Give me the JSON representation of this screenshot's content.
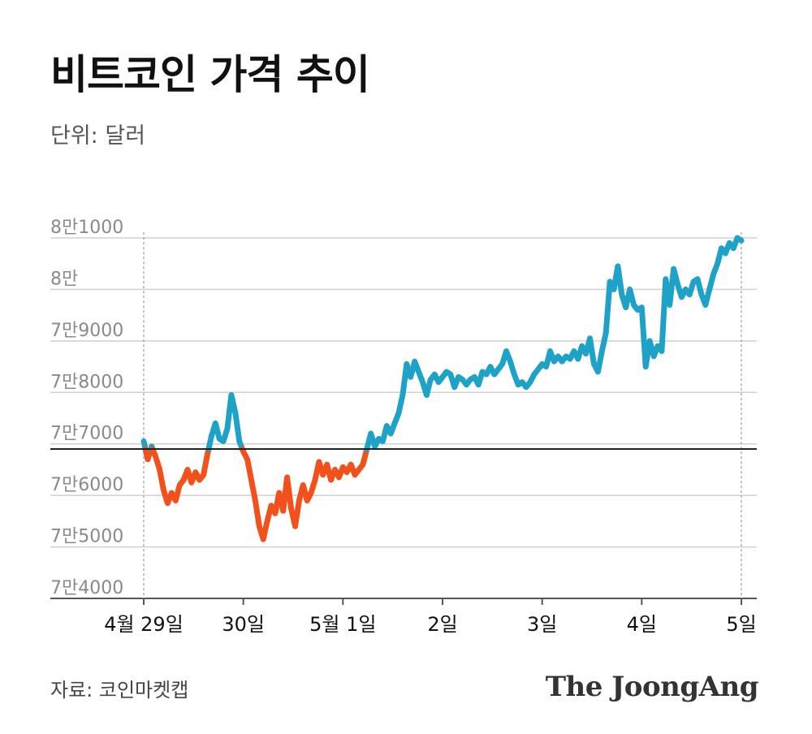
{
  "header": {
    "title": "비트코인 가격 추이",
    "subtitle": "단위: 달러"
  },
  "footer": {
    "source": "자료: 코인마켓캡",
    "brand": "The JoongAng"
  },
  "colors": {
    "above_reference": "#1ea2c8",
    "below_reference": "#f2511b",
    "grid": "#d0d0d0",
    "reference_line": "#222222"
  },
  "chart_data": {
    "type": "line",
    "ylim": [
      74000,
      81000
    ],
    "xlim": [
      0,
      6
    ],
    "grid": true,
    "reference_value": 76900,
    "y_ticks": [
      {
        "value": 74000,
        "label": "7만4000"
      },
      {
        "value": 75000,
        "label": "7만5000"
      },
      {
        "value": 76000,
        "label": "7만6000"
      },
      {
        "value": 77000,
        "label": "7만7000"
      },
      {
        "value": 78000,
        "label": "7만8000"
      },
      {
        "value": 79000,
        "label": "7만9000"
      },
      {
        "value": 80000,
        "label": "8만"
      },
      {
        "value": 81000,
        "label": "8만1000"
      }
    ],
    "x_ticks": [
      {
        "value": 0,
        "label": "4월 29일"
      },
      {
        "value": 1,
        "label": "30일"
      },
      {
        "value": 2,
        "label": "5월 1일"
      },
      {
        "value": 3,
        "label": "2일"
      },
      {
        "value": 4,
        "label": "3일"
      },
      {
        "value": 5,
        "label": "4일"
      },
      {
        "value": 6,
        "label": "5일"
      }
    ],
    "points": [
      [
        0.0,
        77050
      ],
      [
        0.04,
        76700
      ],
      [
        0.08,
        76950
      ],
      [
        0.12,
        76750
      ],
      [
        0.16,
        76500
      ],
      [
        0.2,
        76100
      ],
      [
        0.24,
        75850
      ],
      [
        0.28,
        76050
      ],
      [
        0.32,
        75900
      ],
      [
        0.36,
        76200
      ],
      [
        0.4,
        76300
      ],
      [
        0.44,
        76500
      ],
      [
        0.48,
        76250
      ],
      [
        0.52,
        76450
      ],
      [
        0.56,
        76300
      ],
      [
        0.6,
        76400
      ],
      [
        0.64,
        76800
      ],
      [
        0.68,
        77150
      ],
      [
        0.72,
        77400
      ],
      [
        0.76,
        77100
      ],
      [
        0.8,
        77050
      ],
      [
        0.84,
        77300
      ],
      [
        0.88,
        77950
      ],
      [
        0.92,
        77600
      ],
      [
        0.96,
        77050
      ],
      [
        1.0,
        76850
      ],
      [
        1.04,
        76700
      ],
      [
        1.08,
        76300
      ],
      [
        1.12,
        75900
      ],
      [
        1.16,
        75400
      ],
      [
        1.2,
        75150
      ],
      [
        1.24,
        75500
      ],
      [
        1.28,
        75800
      ],
      [
        1.32,
        75650
      ],
      [
        1.36,
        76050
      ],
      [
        1.4,
        75700
      ],
      [
        1.44,
        76350
      ],
      [
        1.48,
        75750
      ],
      [
        1.52,
        75400
      ],
      [
        1.56,
        75900
      ],
      [
        1.6,
        76200
      ],
      [
        1.64,
        75900
      ],
      [
        1.68,
        76050
      ],
      [
        1.72,
        76300
      ],
      [
        1.76,
        76650
      ],
      [
        1.8,
        76400
      ],
      [
        1.84,
        76600
      ],
      [
        1.88,
        76300
      ],
      [
        1.92,
        76500
      ],
      [
        1.96,
        76350
      ],
      [
        2.0,
        76550
      ],
      [
        2.04,
        76450
      ],
      [
        2.08,
        76600
      ],
      [
        2.12,
        76400
      ],
      [
        2.16,
        76500
      ],
      [
        2.2,
        76600
      ],
      [
        2.24,
        76900
      ],
      [
        2.28,
        77200
      ],
      [
        2.32,
        76950
      ],
      [
        2.36,
        77100
      ],
      [
        2.4,
        77050
      ],
      [
        2.44,
        77350
      ],
      [
        2.48,
        77200
      ],
      [
        2.52,
        77400
      ],
      [
        2.56,
        77600
      ],
      [
        2.6,
        77950
      ],
      [
        2.64,
        78550
      ],
      [
        2.68,
        78300
      ],
      [
        2.72,
        78600
      ],
      [
        2.76,
        78400
      ],
      [
        2.8,
        78200
      ],
      [
        2.84,
        77950
      ],
      [
        2.88,
        78250
      ],
      [
        2.92,
        78350
      ],
      [
        2.96,
        78200
      ],
      [
        3.0,
        78300
      ],
      [
        3.04,
        78400
      ],
      [
        3.08,
        78350
      ],
      [
        3.12,
        78100
      ],
      [
        3.16,
        78300
      ],
      [
        3.2,
        78250
      ],
      [
        3.24,
        78150
      ],
      [
        3.28,
        78250
      ],
      [
        3.32,
        78300
      ],
      [
        3.36,
        78150
      ],
      [
        3.4,
        78400
      ],
      [
        3.44,
        78350
      ],
      [
        3.48,
        78500
      ],
      [
        3.52,
        78350
      ],
      [
        3.56,
        78450
      ],
      [
        3.6,
        78550
      ],
      [
        3.64,
        78800
      ],
      [
        3.68,
        78600
      ],
      [
        3.72,
        78350
      ],
      [
        3.76,
        78150
      ],
      [
        3.8,
        78200
      ],
      [
        3.84,
        78100
      ],
      [
        3.88,
        78200
      ],
      [
        3.92,
        78350
      ],
      [
        3.96,
        78450
      ],
      [
        4.0,
        78550
      ],
      [
        4.04,
        78500
      ],
      [
        4.08,
        78800
      ],
      [
        4.12,
        78600
      ],
      [
        4.16,
        78700
      ],
      [
        4.2,
        78600
      ],
      [
        4.24,
        78700
      ],
      [
        4.28,
        78650
      ],
      [
        4.32,
        78800
      ],
      [
        4.36,
        78650
      ],
      [
        4.4,
        78900
      ],
      [
        4.44,
        78750
      ],
      [
        4.48,
        79050
      ],
      [
        4.52,
        78550
      ],
      [
        4.56,
        78400
      ],
      [
        4.6,
        78800
      ],
      [
        4.64,
        79150
      ],
      [
        4.68,
        80150
      ],
      [
        4.72,
        80000
      ],
      [
        4.76,
        80450
      ],
      [
        4.8,
        79900
      ],
      [
        4.84,
        79650
      ],
      [
        4.88,
        80000
      ],
      [
        4.92,
        79700
      ],
      [
        4.96,
        79600
      ],
      [
        5.0,
        79650
      ],
      [
        5.04,
        78500
      ],
      [
        5.08,
        79000
      ],
      [
        5.12,
        78700
      ],
      [
        5.16,
        78900
      ],
      [
        5.2,
        78800
      ],
      [
        5.24,
        80200
      ],
      [
        5.28,
        79700
      ],
      [
        5.32,
        80400
      ],
      [
        5.36,
        80100
      ],
      [
        5.4,
        79850
      ],
      [
        5.44,
        80000
      ],
      [
        5.48,
        79900
      ],
      [
        5.52,
        80150
      ],
      [
        5.56,
        80200
      ],
      [
        5.6,
        79900
      ],
      [
        5.64,
        79700
      ],
      [
        5.68,
        80000
      ],
      [
        5.72,
        80300
      ],
      [
        5.76,
        80500
      ],
      [
        5.8,
        80800
      ],
      [
        5.84,
        80700
      ],
      [
        5.88,
        80900
      ],
      [
        5.92,
        80800
      ],
      [
        5.96,
        81000
      ],
      [
        6.0,
        80950
      ]
    ]
  }
}
